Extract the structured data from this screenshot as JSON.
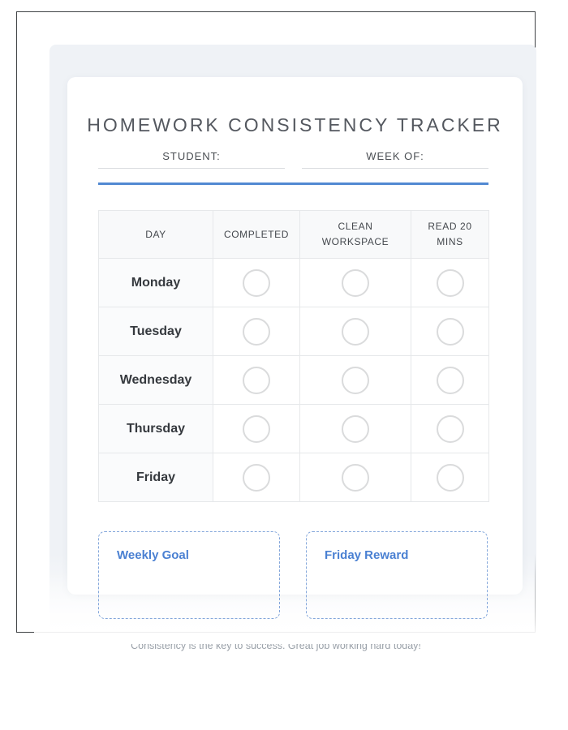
{
  "worksheet": {
    "title": "HOMEWORK CONSISTENCY TRACKER",
    "fields": [
      {
        "label": "STUDENT:",
        "value": ""
      },
      {
        "label": "WEEK OF:",
        "value": ""
      }
    ],
    "table": {
      "columns": [
        "DAY",
        "COMPLETED",
        "CLEAN WORKSPACE",
        "READ 20 MINS"
      ],
      "rows": [
        {
          "day": "Monday",
          "checks": [
            false,
            false,
            false
          ]
        },
        {
          "day": "Tuesday",
          "checks": [
            false,
            false,
            false
          ]
        },
        {
          "day": "Wednesday",
          "checks": [
            false,
            false,
            false
          ]
        },
        {
          "day": "Thursday",
          "checks": [
            false,
            false,
            false
          ]
        },
        {
          "day": "Friday",
          "checks": [
            false,
            false,
            false
          ]
        }
      ]
    },
    "goal_box": {
      "title": "Weekly Goal",
      "content": ""
    },
    "reward_box": {
      "title": "Friday Reward",
      "content": ""
    },
    "footer_note": "Consistency is the key to success. Great job working hard today!"
  },
  "colors": {
    "accent_blue": "#5289d2",
    "box_title_blue": "#4a80d2",
    "dashed_border_blue": "#84a7db",
    "panel_gray": "#eff2f6",
    "page_border": "#3f4245"
  }
}
